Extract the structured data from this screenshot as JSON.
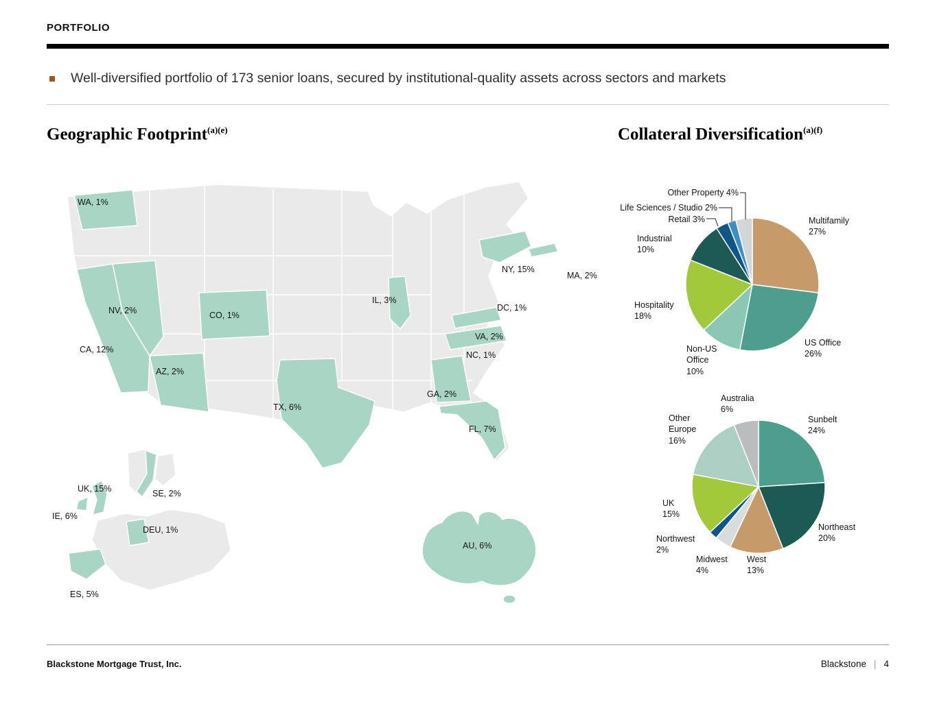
{
  "header": {
    "kicker": "PORTFOLIO",
    "bullet_text": "Well-diversified portfolio of 173 senior loans, secured by institutional-quality assets across sectors and markets"
  },
  "sections": {
    "geographic": {
      "title": "Geographic Footprint",
      "sup": "(a)(e)"
    },
    "collateral": {
      "title": "Collateral Diversification",
      "sup": "(a)(f)"
    }
  },
  "geo_labels": {
    "us": [
      "WA, 1%",
      "NV, 2%",
      "CA, 12%",
      "AZ, 2%",
      "CO, 1%",
      "TX, 6%",
      "IL, 3%",
      "NY, 15%",
      "MA, 2%",
      "DC, 1%",
      "VA, 2%",
      "NC, 1%",
      "GA, 2%",
      "FL, 7%"
    ],
    "europe": [
      "UK, 15%",
      "SE, 2%",
      "IE, 6%",
      "DEU, 1%",
      "ES, 5%"
    ],
    "australia": [
      "AU, 6%"
    ]
  },
  "pie1_labels": {
    "other_property": "Other Property 4%",
    "life_sciences": "Life Sciences / Studio 2%",
    "retail": "Retail 3%",
    "industrial": "Industrial\n10%",
    "multifamily": "Multifamily\n27%",
    "hospitality": "Hospitality\n18%",
    "non_us_office": "Non-US\nOffice\n10%",
    "us_office": "US Office\n26%"
  },
  "pie2_labels": {
    "australia": "Australia\n6%",
    "sunbelt": "Sunbelt\n24%",
    "other_europe": "Other\nEurope\n16%",
    "uk": "UK\n15%",
    "northwest": "Northwest\n2%",
    "midwest": "Midwest\n4%",
    "west": "West\n13%",
    "northeast": "Northeast\n20%"
  },
  "footer": {
    "left": "Blackstone Mortgage Trust, Inc.",
    "brand": "Blackstone",
    "separator": "|",
    "page": "4"
  },
  "colors": {
    "bullet_accent": "#a3511f",
    "map_highlight": "#a9d5c5",
    "map_base": "#eaeaea",
    "header_rule": "#000000"
  },
  "chart_data": [
    {
      "type": "pie",
      "title": "Collateral Diversification by Property Type",
      "labels": [
        "Multifamily",
        "US Office",
        "Non-US Office",
        "Hospitality",
        "Industrial",
        "Retail",
        "Life Sciences / Studio",
        "Other Property"
      ],
      "values": [
        27,
        26,
        10,
        18,
        10,
        3,
        2,
        4
      ],
      "unit": "%",
      "colors": [
        "#c79a6b",
        "#4d9e8c",
        "#8cc7b6",
        "#a2c93c",
        "#1d5a55",
        "#0f5588",
        "#3e8ec6",
        "#d2d6d7"
      ],
      "start_angle_deg": 0,
      "direction": "clockwise",
      "legend_position": "labels-around"
    },
    {
      "type": "pie",
      "title": "Collateral Diversification by Region",
      "labels": [
        "Sunbelt",
        "Northeast",
        "West",
        "Midwest",
        "Northwest",
        "UK",
        "Other Europe",
        "Australia"
      ],
      "values": [
        24,
        20,
        13,
        4,
        2,
        15,
        16,
        6
      ],
      "unit": "%",
      "colors": [
        "#4d9e8c",
        "#1d5a55",
        "#c79a6b",
        "#d8dcdc",
        "#0f5588",
        "#a2c93c",
        "#abd0c3",
        "#b9bdbd"
      ],
      "start_angle_deg": 0,
      "direction": "clockwise",
      "legend_position": "labels-around"
    },
    {
      "type": "map",
      "title": "Geographic Footprint",
      "unit": "%",
      "regions": [
        {
          "code": "WA",
          "value": 1
        },
        {
          "code": "NV",
          "value": 2
        },
        {
          "code": "CA",
          "value": 12
        },
        {
          "code": "AZ",
          "value": 2
        },
        {
          "code": "CO",
          "value": 1
        },
        {
          "code": "TX",
          "value": 6
        },
        {
          "code": "IL",
          "value": 3
        },
        {
          "code": "NY",
          "value": 15
        },
        {
          "code": "MA",
          "value": 2
        },
        {
          "code": "DC",
          "value": 1
        },
        {
          "code": "VA",
          "value": 2
        },
        {
          "code": "NC",
          "value": 1
        },
        {
          "code": "GA",
          "value": 2
        },
        {
          "code": "FL",
          "value": 7
        },
        {
          "code": "UK",
          "value": 15
        },
        {
          "code": "SE",
          "value": 2
        },
        {
          "code": "IE",
          "value": 6
        },
        {
          "code": "DEU",
          "value": 1
        },
        {
          "code": "ES",
          "value": 5
        },
        {
          "code": "AU",
          "value": 6
        }
      ]
    }
  ]
}
